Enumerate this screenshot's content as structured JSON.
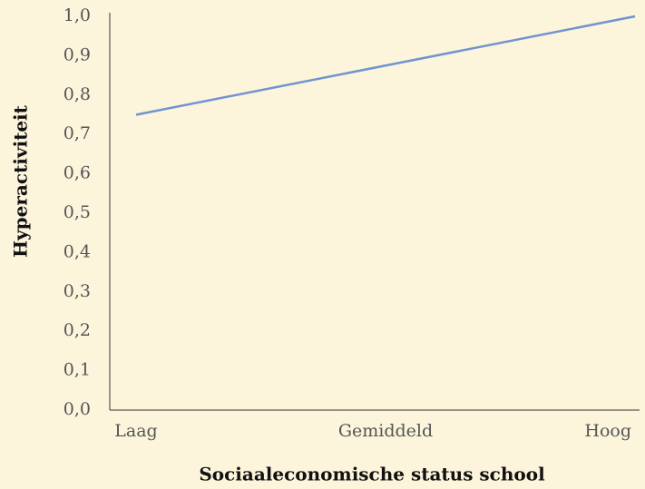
{
  "chart_data": {
    "type": "line",
    "categories": [
      "Laag",
      "Gemiddeld",
      "Hoog"
    ],
    "series": [
      {
        "name": "Hyperactiviteit",
        "color": "#7094d0",
        "values": [
          0.75,
          0.875,
          1.0
        ]
      }
    ],
    "ylim": [
      0,
      1.0
    ],
    "yticks": [
      {
        "value": 0,
        "label": "0,0"
      },
      {
        "value": 0.1,
        "label": "0,1"
      },
      {
        "value": 0.2,
        "label": "0,2"
      },
      {
        "value": 0.3,
        "label": "0,3"
      },
      {
        "value": 0.4,
        "label": "0,4"
      },
      {
        "value": 0.5,
        "label": "0,5"
      },
      {
        "value": 0.6,
        "label": "0,6"
      },
      {
        "value": 0.7,
        "label": "0,7"
      },
      {
        "value": 0.8,
        "label": "0,8"
      },
      {
        "value": 0.9,
        "label": "0,9"
      },
      {
        "value": 1.0,
        "label": "1,0"
      }
    ],
    "xlabel": "Sociaaleconomische status school",
    "ylabel": "Hyperactiviteit",
    "grid": false
  }
}
